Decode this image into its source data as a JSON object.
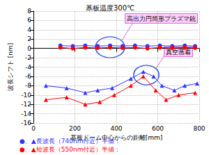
{
  "chart_data": {
    "type": "line",
    "title": "基板温度300℃",
    "x_label": "基板ドーム中心からの距離[mm]",
    "y_label": "波長シフト [nm]",
    "xlim": [
      0,
      800
    ],
    "xticks": [
      0,
      200,
      400,
      600,
      800
    ],
    "ylim": [
      -16,
      8
    ],
    "yticks": [
      -16,
      -14,
      -12,
      -10,
      -8,
      -6,
      -4,
      -2,
      0,
      2,
      4,
      6,
      8
    ],
    "grid": true,
    "series": [
      {
        "color": "#3333ff",
        "marker": "circle",
        "x": [
          130,
          190,
          250,
          310,
          370,
          430,
          490,
          550,
          610,
          670,
          730,
          780
        ],
        "values": [
          0.6,
          0.5,
          0.6,
          0.5,
          0.6,
          0.5,
          0.6,
          0.5,
          0.6,
          0.5,
          0.6,
          0.5
        ]
      },
      {
        "color": "#ff0000",
        "marker": "circle",
        "x": [
          130,
          190,
          250,
          310,
          370,
          430,
          490,
          550,
          610,
          670,
          730,
          780
        ],
        "values": [
          0.2,
          0,
          0.2,
          0.1,
          0.2,
          0.1,
          0.2,
          0,
          0.2,
          0.1,
          0.2,
          0.1
        ]
      },
      {
        "color": "#3333ff",
        "marker": "triangle",
        "x": [
          60,
          160,
          250,
          310,
          380,
          470,
          530,
          580,
          620,
          680,
          730,
          790
        ],
        "values": [
          -8,
          -8.5,
          -9.5,
          -9,
          -8.5,
          -6.5,
          -5,
          -6,
          -8,
          -9,
          -8,
          -7.5
        ]
      },
      {
        "color": "#ff0000",
        "marker": "triangle",
        "x": [
          60,
          160,
          250,
          320,
          390,
          470,
          530,
          590,
          640,
          700,
          780
        ],
        "values": [
          -11,
          -10.5,
          -12,
          -11.5,
          -10,
          -8,
          -6,
          -9,
          -11,
          -10,
          -9.5
        ]
      }
    ],
    "annotations": [
      {
        "text": "高出力円筒形プラズマ銃"
      },
      {
        "text": "真空蒸着"
      }
    ],
    "notes": [
      {
        "text": "●、▲長波長（740nm付近）半値：",
        "color": "#3333ff"
      },
      {
        "text": "●、▲短波長（550nm付近）半値：",
        "color": "#ff0000"
      }
    ]
  }
}
